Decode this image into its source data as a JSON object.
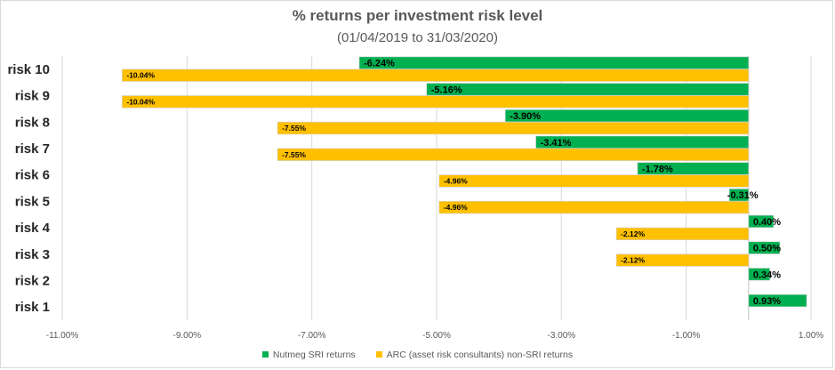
{
  "chart_data": {
    "type": "bar",
    "orientation": "horizontal",
    "title": "% returns per investment risk level",
    "subtitle": "(01/04/2019 to 31/03/2020)",
    "categories": [
      "risk 10",
      "risk 9",
      "risk 8",
      "risk 7",
      "risk 6",
      "risk 5",
      "risk 4",
      "risk 3",
      "risk 2",
      "risk 1"
    ],
    "series": [
      {
        "name": "Nutmeg SRI returns",
        "color": "#00b050",
        "values": [
          -6.24,
          -5.16,
          -3.9,
          -3.41,
          -1.78,
          -0.31,
          0.4,
          0.5,
          0.34,
          0.93
        ],
        "labels": [
          "-6.24%",
          "-5.16%",
          "-3.90%",
          "-3.41%",
          "-1.78%",
          "-0.31%",
          "0.40%",
          "0.50%",
          "0.34%",
          "0.93%"
        ]
      },
      {
        "name": "ARC (asset risk consultants) non-SRI returns",
        "color": "#ffc000",
        "values": [
          -10.04,
          -10.04,
          -7.55,
          -7.55,
          -4.96,
          -4.96,
          -2.12,
          -2.12,
          null,
          null
        ],
        "labels": [
          "-10.04%",
          "-10.04%",
          "-7.55%",
          "-7.55%",
          "-4.96%",
          "-4.96%",
          "-2.12%",
          "-2.12%",
          null,
          null
        ]
      }
    ],
    "x_ticks": [
      "-11.00%",
      "-9.00%",
      "-7.00%",
      "-5.00%",
      "-3.00%",
      "-1.00%",
      "1.00%"
    ],
    "x_tick_values": [
      -11,
      -9,
      -7,
      -5,
      -3,
      -1,
      1
    ],
    "xlim": [
      -11,
      1
    ],
    "grid": true,
    "legend_position": "bottom"
  }
}
